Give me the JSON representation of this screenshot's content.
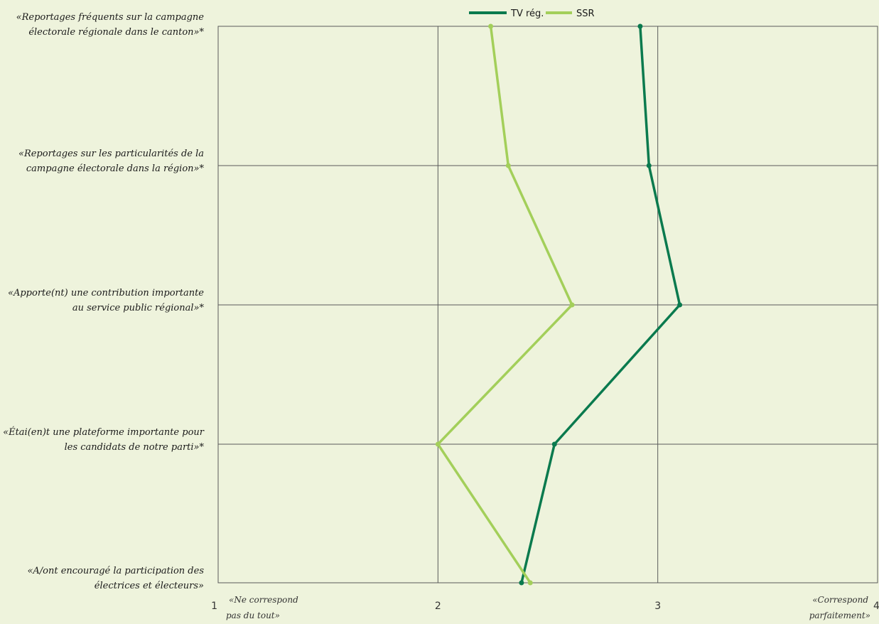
{
  "chart_data": {
    "type": "line",
    "orientation": "horizontal-values",
    "categories": [
      [
        "«Reportages fréquents sur la campagne",
        "électorale régionale dans le canton»*"
      ],
      [
        "«Reportages sur les particularités de la",
        "campagne électorale dans la région»*"
      ],
      [
        "«Apporte(nt) une contribution importante",
        "au service public régional»*"
      ],
      [
        "«Étai(en)t une plateforme importante pour",
        "les candidats de notre parti»*"
      ],
      [
        "«A/ont encouragé la participation des",
        "électrices et électeurs»"
      ]
    ],
    "series": [
      {
        "name": "TV rég.",
        "color": "#0a7a4e",
        "values": [
          2.92,
          2.96,
          3.1,
          2.53,
          2.38
        ]
      },
      {
        "name": "SSR",
        "color": "#a3cf5a",
        "values": [
          2.24,
          2.32,
          2.61,
          2.0,
          2.42
        ]
      }
    ],
    "xlim": [
      1,
      4
    ],
    "xticks": [
      "1",
      "2",
      "3",
      "4"
    ],
    "anchor_low": [
      "«Ne correspond",
      "pas du tout»"
    ],
    "anchor_high": [
      "«Correspond",
      "parfaitement»"
    ],
    "legend_position": "top-center",
    "grid": true
  }
}
